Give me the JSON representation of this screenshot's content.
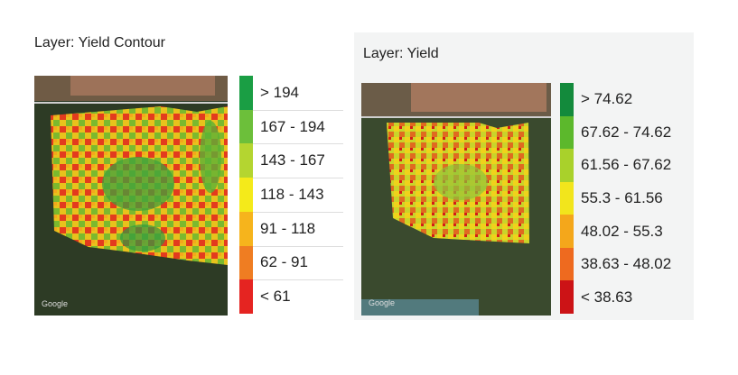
{
  "panels": [
    {
      "title": "Layer: Yield Contour",
      "map": {
        "watermark": "Google"
      },
      "legend": [
        {
          "label": "> 194",
          "color": "#1a9e44"
        },
        {
          "label": "167 - 194",
          "color": "#6cbf3a"
        },
        {
          "label": "143 - 167",
          "color": "#b4d530"
        },
        {
          "label": "118 - 143",
          "color": "#f4ea1a"
        },
        {
          "label": "91 - 118",
          "color": "#f6b41c"
        },
        {
          "label": "62 - 91",
          "color": "#ef7d22"
        },
        {
          "label": "< 61",
          "color": "#e52421"
        }
      ]
    },
    {
      "title": "Layer: Yield",
      "map": {
        "watermark": "Google"
      },
      "legend": [
        {
          "label": "> 74.62",
          "color": "#138a3c"
        },
        {
          "label": "67.62 - 74.62",
          "color": "#5cb82c"
        },
        {
          "label": "61.56 - 67.62",
          "color": "#a9d12b"
        },
        {
          "label": "55.3 - 61.56",
          "color": "#f2e51c"
        },
        {
          "label": "48.02 - 55.3",
          "color": "#f4a71b"
        },
        {
          "label": "38.63 - 48.02",
          "color": "#ee6a1f"
        },
        {
          "label": "< 38.63",
          "color": "#cc1316"
        }
      ]
    }
  ]
}
